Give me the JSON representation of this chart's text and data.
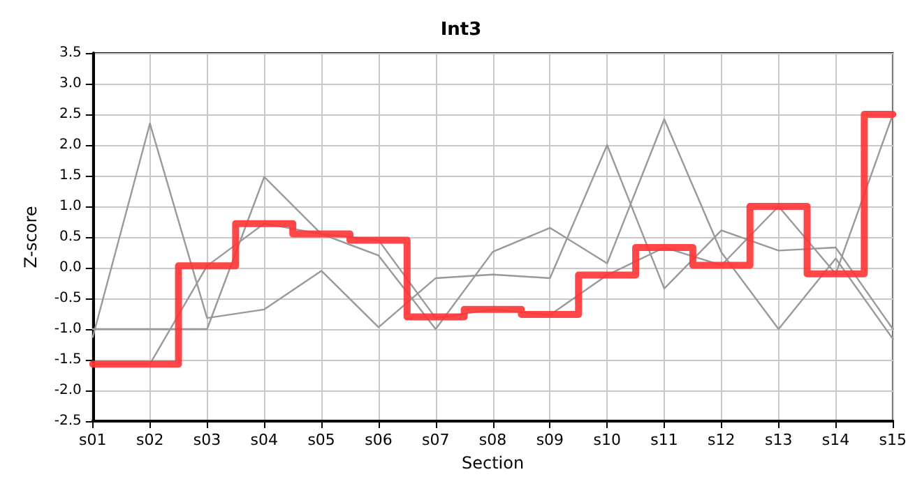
{
  "chart_data": {
    "type": "line",
    "title": "Int3",
    "xlabel": "Section",
    "ylabel": "Z-score",
    "categories": [
      "s01",
      "s02",
      "s03",
      "s04",
      "s05",
      "s06",
      "s07",
      "s08",
      "s09",
      "s10",
      "s11",
      "s12",
      "s13",
      "s14",
      "s15"
    ],
    "series": [
      {
        "color": "#999999",
        "values": [
          -1.13,
          2.35,
          -0.82,
          -0.68,
          -0.05,
          -0.97,
          -0.17,
          -0.11,
          -0.17,
          2.0,
          -0.34,
          0.61,
          0.28,
          0.33,
          -1.0
        ]
      },
      {
        "color": "#999999",
        "values": [
          -1.0,
          -1.0,
          -1.0,
          1.48,
          0.55,
          0.2,
          -1.0,
          0.26,
          0.65,
          0.07,
          2.42,
          0.25,
          -1.0,
          0.15,
          -1.16
        ]
      },
      {
        "color": "#999999",
        "values": [
          -1.57,
          -1.57,
          0.03,
          0.72,
          0.55,
          0.45,
          -0.82,
          -0.68,
          -0.77,
          -0.12,
          0.33,
          0.04,
          1.0,
          -0.1,
          2.5
        ]
      },
      {
        "type": "step",
        "color": "#ff3333",
        "values": [
          -1.57,
          -1.57,
          0.03,
          0.72,
          0.55,
          0.45,
          -0.8,
          -0.68,
          -0.76,
          -0.12,
          0.33,
          0.04,
          1.0,
          -0.1,
          2.5
        ]
      }
    ],
    "ylim": [
      -2.5,
      3.5
    ],
    "yticks": [
      -2.5,
      {
        "value": -2,
        "label": "-2.0"
      },
      -1.5,
      {
        "value": -1,
        "label": "-1.0"
      },
      -0.5,
      {
        "value": 0,
        "label": "0.0"
      },
      0.5,
      {
        "value": 1,
        "label": "1.0"
      },
      1.5,
      {
        "value": 2,
        "label": "2.0"
      },
      2.5,
      {
        "value": 3,
        "label": "3.0"
      },
      3.5
    ],
    "grid": true,
    "marker": "none",
    "line_style": "solid"
  }
}
